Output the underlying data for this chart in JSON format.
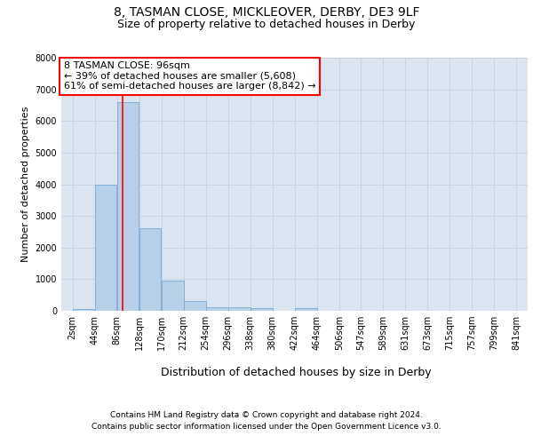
{
  "title_line1": "8, TASMAN CLOSE, MICKLEOVER, DERBY, DE3 9LF",
  "title_line2": "Size of property relative to detached houses in Derby",
  "xlabel": "Distribution of detached houses by size in Derby",
  "ylabel": "Number of detached properties",
  "bar_color": "#b8cfe8",
  "bar_edge_color": "#7aabd4",
  "vline_value": 96,
  "vline_color": "red",
  "annotation_line1": "8 TASMAN CLOSE: 96sqm",
  "annotation_line2": "← 39% of detached houses are smaller (5,608)",
  "annotation_line3": "61% of semi-detached houses are larger (8,842) →",
  "annotation_box_color": "white",
  "annotation_border_color": "red",
  "bin_edges": [
    2,
    44,
    86,
    128,
    170,
    212,
    254,
    296,
    338,
    380,
    422,
    464,
    506,
    547,
    589,
    631,
    673,
    715,
    757,
    799,
    841
  ],
  "bar_heights": [
    70,
    4000,
    6600,
    2600,
    950,
    320,
    120,
    120,
    80,
    0,
    80,
    0,
    0,
    0,
    0,
    0,
    0,
    0,
    0,
    0
  ],
  "ylim": [
    0,
    8000
  ],
  "yticks": [
    0,
    1000,
    2000,
    3000,
    4000,
    5000,
    6000,
    7000,
    8000
  ],
  "grid_color": "#c8d4e4",
  "background_color": "#dce4f0",
  "footer_line1": "Contains HM Land Registry data © Crown copyright and database right 2024.",
  "footer_line2": "Contains public sector information licensed under the Open Government Licence v3.0.",
  "title_fontsize": 10,
  "subtitle_fontsize": 9,
  "ylabel_fontsize": 8,
  "xlabel_fontsize": 9,
  "tick_fontsize": 7,
  "annotation_fontsize": 8,
  "footer_fontsize": 6.5
}
